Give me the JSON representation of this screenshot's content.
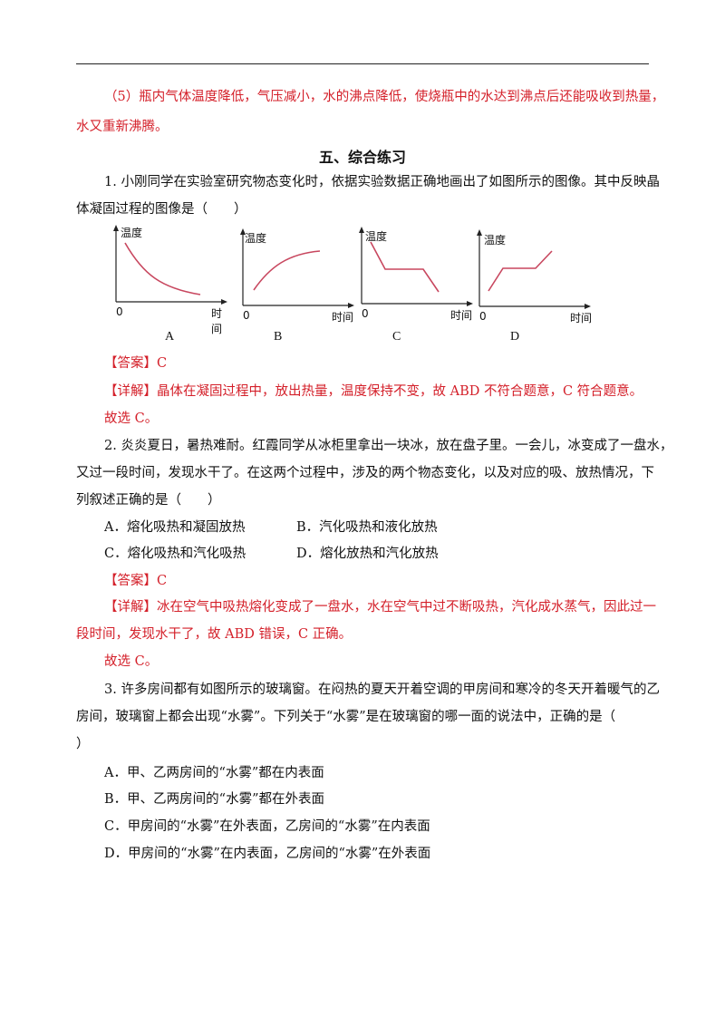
{
  "prev_answer": {
    "line1": "（5）瓶内气体温度降低，气压减小，水的沸点降低，使烧瓶中的水达到沸点后还能吸收到热量，",
    "line2": "水又重新沸腾。"
  },
  "section_title": "五、综合练习",
  "q1": {
    "line1": "1. 小刚同学在实验室研究物态变化时，依据实验数据正确地画出了如图所示的图像。其中反映晶",
    "line2": "体凝固过程的图像是（　　）",
    "graphs": [
      {
        "y_label": "温度",
        "x_label": "时间",
        "origin": "0",
        "caption": "A"
      },
      {
        "y_label": "温度",
        "x_label": "时间",
        "origin": "0",
        "caption": "B"
      },
      {
        "y_label": "温度",
        "x_label": "时间",
        "origin": "0",
        "caption": "C"
      },
      {
        "y_label": "温度",
        "x_label": "时间",
        "origin": "0",
        "caption": "D"
      }
    ],
    "answer_tag": "【答案】",
    "answer": "C",
    "detail_tag": "【详解】",
    "detail": "晶体在凝固过程中，放出热量，温度保持不变，故 ABD 不符合题意，C 符合题意。",
    "conclusion": "故选 C。"
  },
  "q2": {
    "line1": "2. 炎炎夏日，暑热难耐。红霞同学从冰柜里拿出一块冰，放在盘子里。一会儿，冰变成了一盘水，",
    "line2": "又过一段时间，发现水干了。在这两个过程中，涉及的两个物态变化，以及对应的吸、放热情况，下",
    "line3": "列叙述正确的是（　　）",
    "options": {
      "A": "A．熔化吸热和凝固放热",
      "B": "B．汽化吸热和液化放热",
      "C": "C．熔化吸热和汽化吸热",
      "D": "D．熔化放热和汽化放热"
    },
    "answer_tag": "【答案】",
    "answer": "C",
    "detail_tag": "【详解】",
    "detail1": "冰在空气中吸热熔化变成了一盘水，水在空气中过不断吸热，汽化成水蒸气，因此过一",
    "detail2": "段时间，发现水干了，故 ABD 错误，C 正确。",
    "conclusion": "故选 C。"
  },
  "q3": {
    "line1": "3. 许多房间都有如图所示的玻璃窗。在闷热的夏天开着空调的甲房间和寒冷的冬天开着暖气的乙",
    "line2": "房间，玻璃窗上都会出现“水雾”。下列关于“水雾”是在玻璃窗的哪一面的说法中，正确的是（",
    "line3": "）",
    "options": {
      "A": "A．甲、乙两房间的“水雾”都在内表面",
      "B": "B．甲、乙两房间的“水雾”都在外表面",
      "C": "C．甲房间的“水雾”在外表面，乙房间的“水雾”在内表面",
      "D": "D．甲房间的“水雾”在内表面，乙房间的“水雾”在外表面"
    }
  },
  "colors": {
    "answer_red": "#d4202a",
    "curve": "#c8475f",
    "axis": "#222222"
  }
}
